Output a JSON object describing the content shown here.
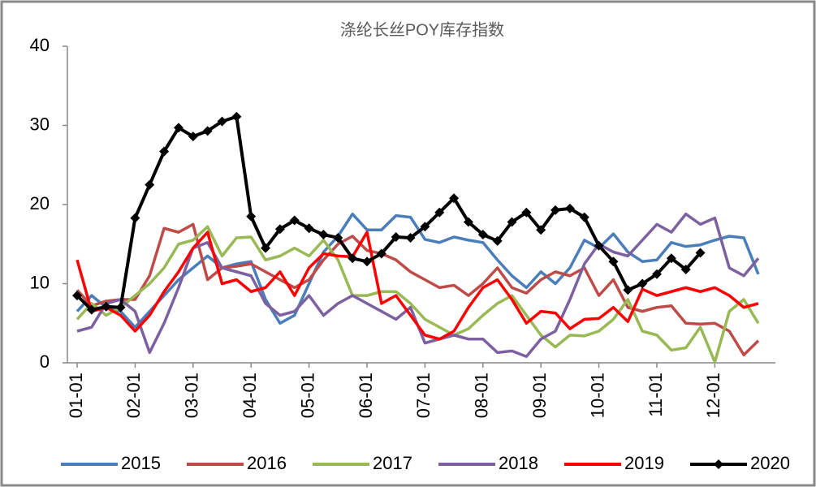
{
  "chart_data": {
    "type": "line",
    "title": "涤纶长丝POY库存指数",
    "categories": [
      "01-01",
      null,
      null,
      null,
      "02-01",
      null,
      null,
      null,
      "03-01",
      null,
      null,
      null,
      "04-01",
      null,
      null,
      null,
      "05-01",
      null,
      null,
      null,
      "06-01",
      null,
      null,
      null,
      "07-01",
      null,
      null,
      null,
      "08-01",
      null,
      null,
      null,
      "09-01",
      null,
      null,
      null,
      "10-01",
      null,
      null,
      null,
      "11-01",
      null,
      null,
      null,
      "12-01",
      null,
      null,
      null
    ],
    "ylim": [
      0,
      40
    ],
    "yticks": [
      0,
      10,
      20,
      30,
      40
    ],
    "grid": false,
    "legend": "bottom",
    "series": [
      {
        "name": "2015",
        "color": "#4a7ebb",
        "values": [
          6.5,
          8.5,
          7.0,
          6.5,
          4.5,
          6.5,
          8.5,
          10.5,
          12.0,
          13.5,
          12.0,
          12.5,
          12.8,
          8.0,
          5.0,
          6.0,
          10.0,
          14.0,
          16.0,
          18.8,
          16.8,
          16.8,
          18.6,
          18.4,
          15.6,
          15.2,
          15.9,
          15.5,
          15.2,
          13.0,
          11.0,
          9.5,
          11.5,
          10.0,
          12.0,
          15.5,
          14.5,
          16.3,
          14.0,
          12.8,
          13.0,
          15.2,
          14.7,
          14.9,
          15.5,
          16.0,
          15.8,
          11.2
        ]
      },
      {
        "name": "2016",
        "color": "#be4b48",
        "values": [
          9.2,
          7.2,
          7.8,
          8.0,
          8.0,
          11.0,
          17.0,
          16.5,
          17.5,
          10.5,
          12.0,
          12.2,
          12.5,
          11.5,
          10.5,
          9.5,
          10.5,
          13.0,
          15.0,
          16.0,
          14.2,
          13.8,
          13.0,
          11.5,
          10.5,
          9.5,
          9.8,
          8.5,
          10.0,
          12.0,
          9.5,
          8.8,
          10.5,
          11.5,
          11.0,
          12.0,
          8.5,
          10.5,
          7.0,
          6.5,
          7.0,
          7.2,
          5.0,
          4.9,
          5.0,
          4.0,
          1.0,
          2.8
        ]
      },
      {
        "name": "2017",
        "color": "#98b954",
        "values": [
          5.5,
          7.5,
          6.0,
          7.0,
          8.5,
          10.0,
          12.0,
          15.0,
          15.5,
          17.2,
          13.5,
          15.8,
          15.9,
          13.0,
          13.5,
          14.5,
          13.5,
          15.5,
          13.0,
          8.5,
          8.5,
          9.0,
          9.0,
          7.5,
          5.5,
          4.5,
          3.5,
          4.3,
          6.0,
          7.5,
          8.5,
          6.0,
          3.5,
          2.0,
          3.5,
          3.4,
          4.0,
          5.5,
          8.0,
          4.0,
          3.5,
          1.6,
          1.9,
          4.5,
          0.1,
          6.5,
          8.0,
          5.0
        ]
      },
      {
        "name": "2018",
        "color": "#7d60a0",
        "values": [
          4.0,
          4.5,
          7.5,
          8.0,
          6.5,
          1.3,
          5.0,
          9.5,
          14.5,
          15.2,
          12.0,
          11.5,
          11.0,
          7.5,
          6.0,
          6.5,
          8.5,
          6.0,
          7.5,
          8.5,
          7.5,
          6.5,
          5.5,
          7.0,
          2.5,
          3.0,
          3.5,
          3.0,
          3.0,
          1.3,
          1.5,
          0.8,
          3.0,
          4.0,
          8.0,
          12.5,
          15.0,
          14.0,
          13.5,
          15.5,
          17.5,
          16.5,
          18.8,
          17.5,
          18.3,
          12.0,
          11.0,
          13.2
        ]
      },
      {
        "name": "2019",
        "color": "#ff0000",
        "values": [
          13.0,
          6.5,
          7.0,
          6.0,
          4.0,
          6.0,
          9.0,
          11.5,
          14.5,
          16.5,
          10.0,
          10.5,
          9.0,
          9.5,
          11.5,
          8.5,
          12.0,
          13.8,
          13.5,
          13.4,
          16.5,
          7.5,
          8.5,
          6.0,
          3.5,
          3.0,
          4.0,
          7.0,
          9.5,
          10.5,
          8.0,
          5.0,
          6.5,
          6.3,
          4.3,
          5.5,
          5.6,
          7.0,
          5.2,
          9.3,
          8.5,
          9.0,
          9.5,
          9.0,
          9.5,
          8.5,
          7.0,
          7.5
        ]
      },
      {
        "name": "2020",
        "color": "#000000",
        "marker": "diamond",
        "values": [
          8.5,
          6.7,
          7.1,
          7.0,
          18.3,
          22.5,
          26.7,
          29.7,
          28.6,
          29.3,
          30.5,
          31.1,
          18.5,
          14.5,
          16.9,
          18.0,
          17.0,
          16.2,
          15.8,
          13.2,
          12.8,
          13.8,
          15.9,
          15.8,
          17.2,
          19.0,
          20.8,
          17.8,
          16.2,
          15.4,
          17.8,
          19.0,
          16.8,
          19.3,
          19.5,
          18.4,
          14.8,
          12.8,
          9.2,
          10.0,
          11.2,
          13.2,
          11.8,
          13.9,
          null,
          null,
          null,
          null
        ]
      }
    ]
  }
}
